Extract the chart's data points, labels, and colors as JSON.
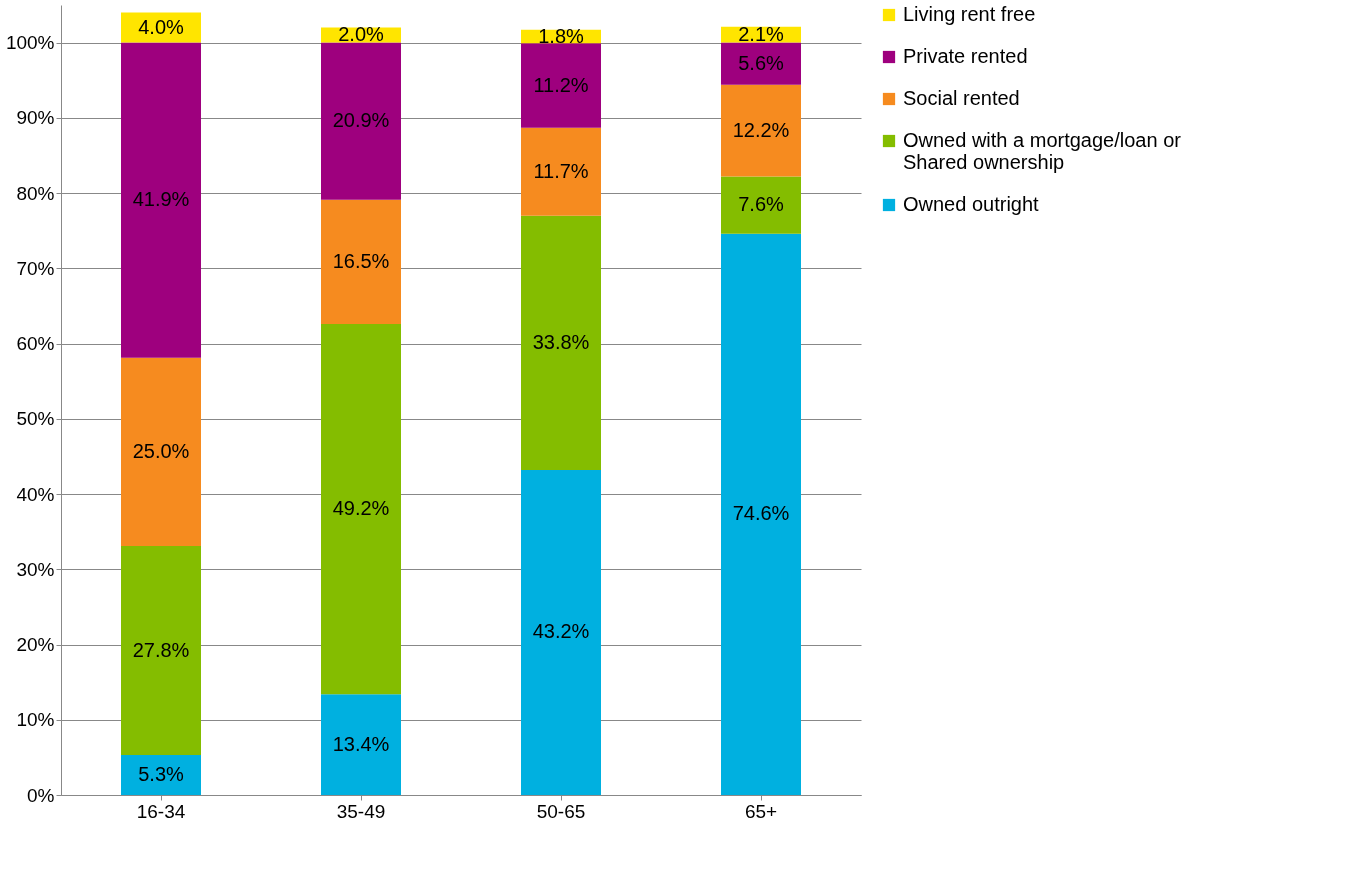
{
  "chart_data": {
    "type": "bar",
    "stacked": true,
    "categories": [
      "16-34",
      "35-49",
      "50-65",
      "65+"
    ],
    "series": [
      {
        "name": "Owned outright",
        "color": "#00b0e0",
        "values": [
          5.3,
          13.4,
          43.2,
          74.6
        ],
        "value_labels": [
          "5.3%",
          "13.4%",
          "43.2%",
          "74.6%"
        ]
      },
      {
        "name": "Owned with a mortgage/loan or Shared ownership",
        "color": "#84bd00",
        "values": [
          27.8,
          49.2,
          33.8,
          7.6
        ],
        "value_labels": [
          "27.8%",
          "49.2%",
          "33.8%",
          "7.6%"
        ]
      },
      {
        "name": "Social rented",
        "color": "#f68b1f",
        "values": [
          25.0,
          16.5,
          11.7,
          12.2
        ],
        "value_labels": [
          "25.0%",
          "16.5%",
          "11.7%",
          "12.2%"
        ]
      },
      {
        "name": "Private rented",
        "color": "#9e007e",
        "values": [
          41.9,
          20.9,
          11.2,
          5.6
        ],
        "value_labels": [
          "41.9%",
          "20.9%",
          "11.2%",
          "5.6%"
        ]
      },
      {
        "name": "Living rent free",
        "color": "#ffe500",
        "values": [
          4.0,
          2.0,
          1.8,
          2.1
        ],
        "value_labels": [
          "4.0%",
          "2.0%",
          "1.8%",
          "2.1%"
        ]
      }
    ],
    "ylim": [
      0,
      105
    ],
    "yticks": [
      {
        "value": 0,
        "label": "0%"
      },
      {
        "value": 10,
        "label": "10%"
      },
      {
        "value": 20,
        "label": "20%"
      },
      {
        "value": 30,
        "label": "30%"
      },
      {
        "value": 40,
        "label": "40%"
      },
      {
        "value": 50,
        "label": "50%"
      },
      {
        "value": 60,
        "label": "60%"
      },
      {
        "value": 70,
        "label": "70%"
      },
      {
        "value": 80,
        "label": "80%"
      },
      {
        "value": 90,
        "label": "90%"
      },
      {
        "value": 100,
        "label": "100%"
      }
    ],
    "grid": "y",
    "legend": "right"
  }
}
